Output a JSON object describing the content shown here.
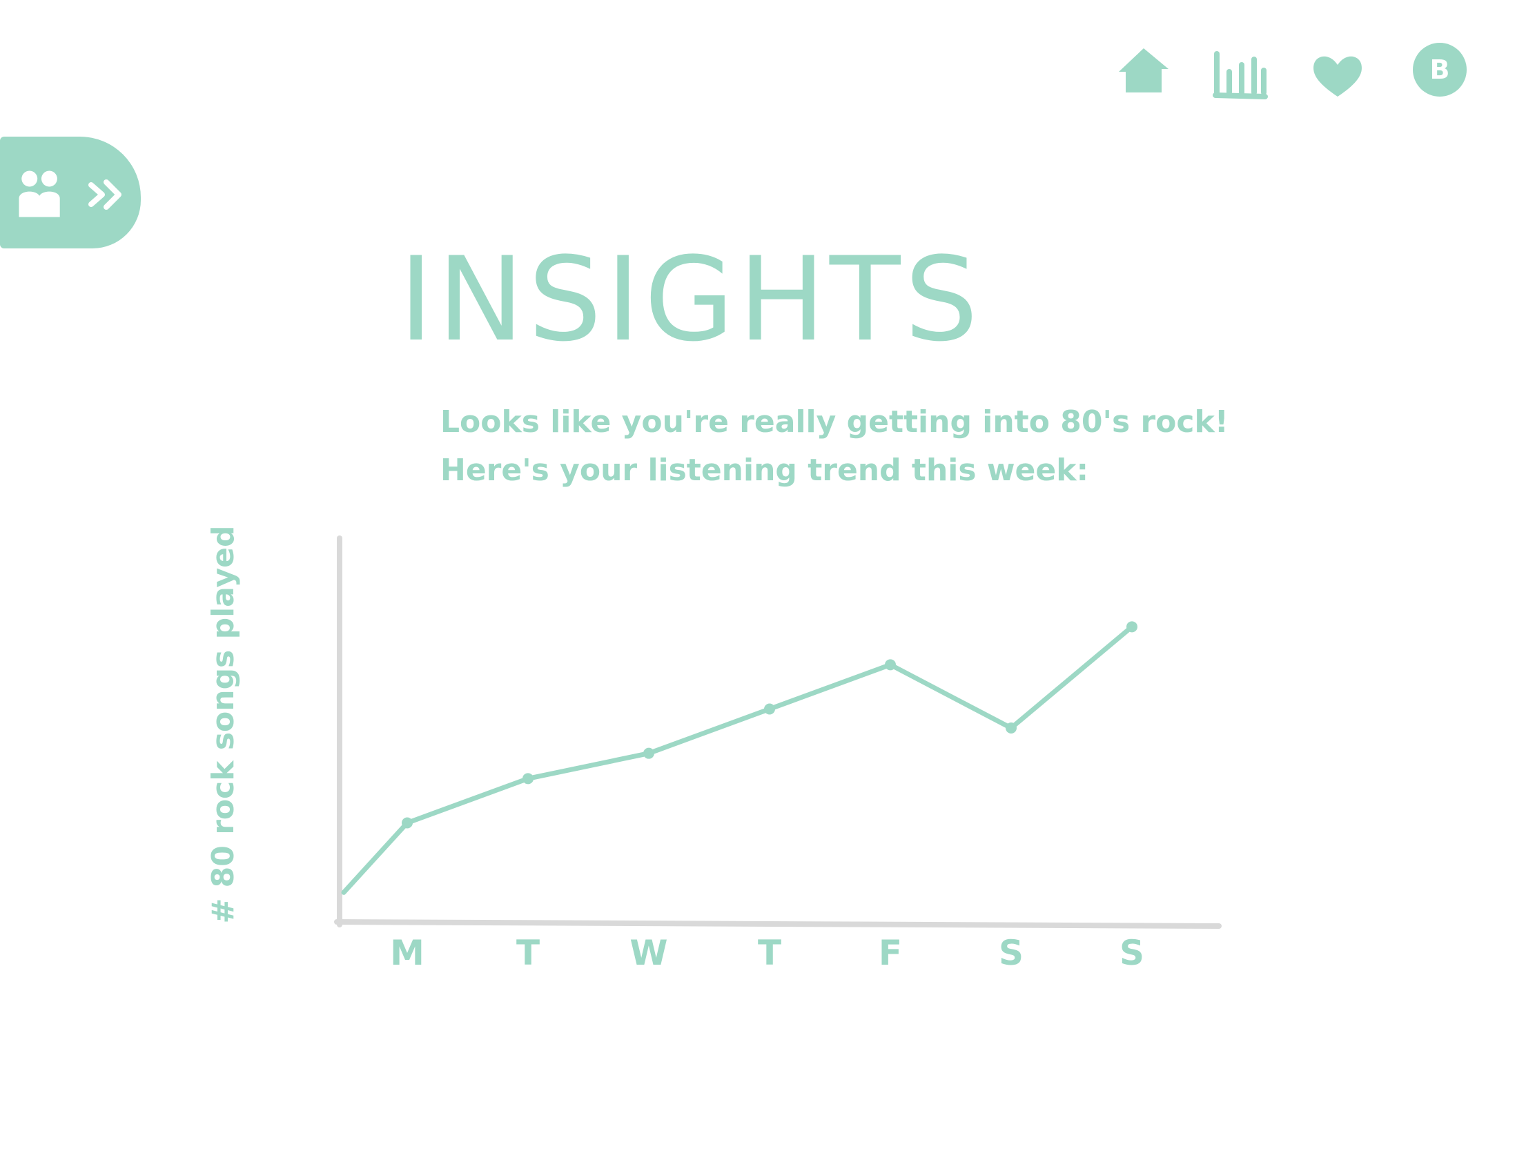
{
  "nav": {
    "home_icon": "home-icon",
    "stats_icon": "bar-chart-icon",
    "favorites_icon": "heart-icon",
    "profile_initial": "B"
  },
  "friends_tab": {
    "people_icon": "people-icon",
    "expand_icon": "double-chevron-right-icon"
  },
  "page": {
    "title": "INSIGHTS",
    "subtitle_line1": "Looks like you're really getting into 80's rock!",
    "subtitle_line2": "Here's your listening trend this week:"
  },
  "colors": {
    "accent": "#9dd8c5",
    "axis": "#d9d9d9",
    "background": "#ffffff"
  },
  "chart_data": {
    "type": "line",
    "categories": [
      "M",
      "T",
      "W",
      "T",
      "F",
      "S",
      "S"
    ],
    "values": [
      4.5,
      5.2,
      5.6,
      6.3,
      7.0,
      6.0,
      7.6
    ],
    "start_value": 3.4,
    "title": "",
    "xlabel": "",
    "ylabel": "# 80 rock songs played",
    "ylim": [
      3,
      9
    ],
    "grid": false,
    "legend": "none"
  }
}
